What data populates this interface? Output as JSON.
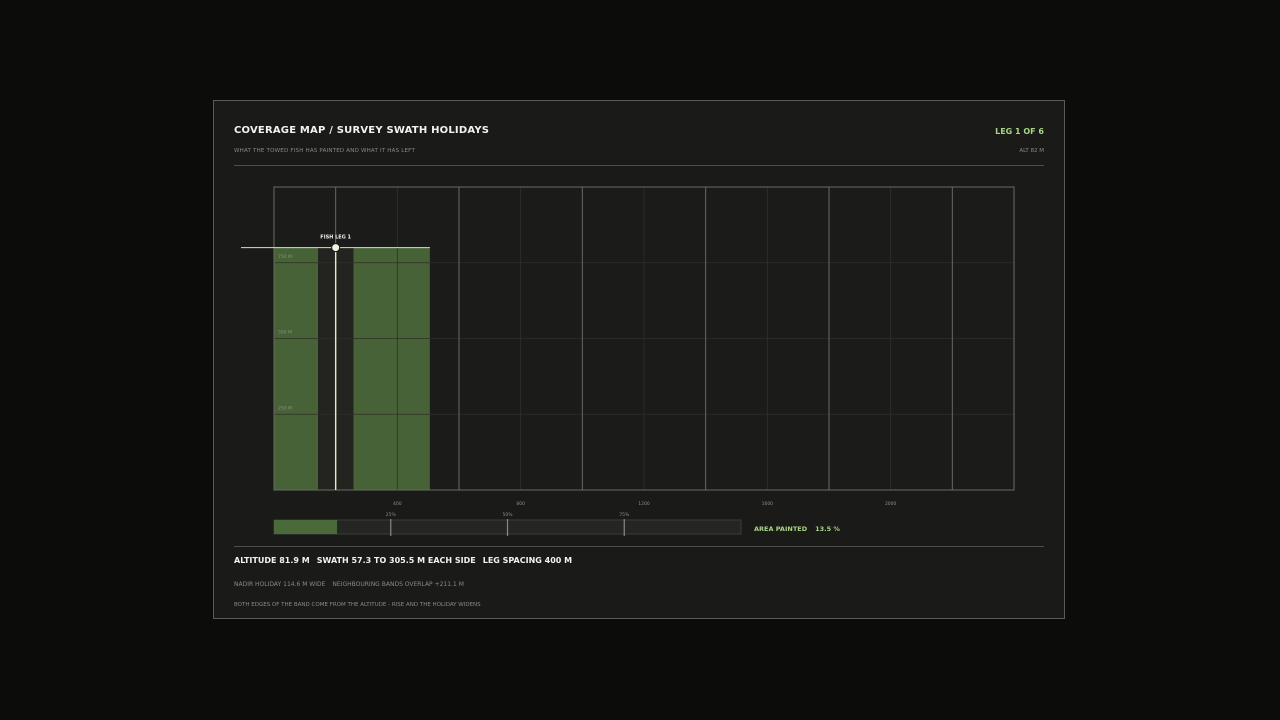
{
  "header": {
    "title": "COVERAGE MAP / SURVEY SWATH HOLIDAYS",
    "subtitle": "WHAT THE TOWED FISH HAS PAINTED AND WHAT IT HAS LEFT",
    "leg_status": "LEG 1 OF 6",
    "altitude_readout": "ALT 82 M"
  },
  "chart_data": {
    "type": "area",
    "x_ticks": [
      "400",
      "800",
      "1200",
      "1600",
      "2000"
    ],
    "x_tick_values": [
      400,
      800,
      1200,
      1600,
      2000
    ],
    "y_ticks": [
      "750 M",
      "500 M",
      "250 M"
    ],
    "y_tick_values": [
      750,
      500,
      250
    ],
    "xlim": [
      0,
      2400
    ],
    "ylim": [
      0,
      1000
    ],
    "leg_lines_x": [
      200,
      600,
      1000,
      1400,
      1800,
      2200
    ],
    "fish": {
      "label": "FISH LEG 1",
      "x": 200,
      "y": 800
    },
    "painted_bands": [
      {
        "x0": 0,
        "x1": 142.7
      },
      {
        "x0": 257.3,
        "x1": 505.5
      }
    ],
    "nadir_holiday": {
      "x0": 142.7,
      "x1": 257.3
    },
    "colors": {
      "painted": "#4b6a3a",
      "fish_line": "#c8f0a4",
      "grid": "#2f2f2b",
      "leg_line": "#6a6a64"
    }
  },
  "meter": {
    "label": "AREA PAINTED",
    "value_text": "13.5 %",
    "fraction": 0.135,
    "tick_labels": [
      "25%",
      "50%",
      "75%"
    ],
    "tick_values": [
      0.25,
      0.5,
      0.75
    ]
  },
  "stats": {
    "altitude": "ALTITUDE  81.9 M",
    "swath": "SWATH  57.3 TO  305.5 M EACH SIDE",
    "spacing": "LEG SPACING 400 M",
    "holiday": "NADIR HOLIDAY 114.6 M WIDE",
    "overlap": "NEIGHBOURING BANDS OVERLAP +211.1 M",
    "note": "BOTH EDGES OF THE BAND COME FROM THE ALTITUDE - RISE AND THE HOLIDAY WIDENS"
  }
}
